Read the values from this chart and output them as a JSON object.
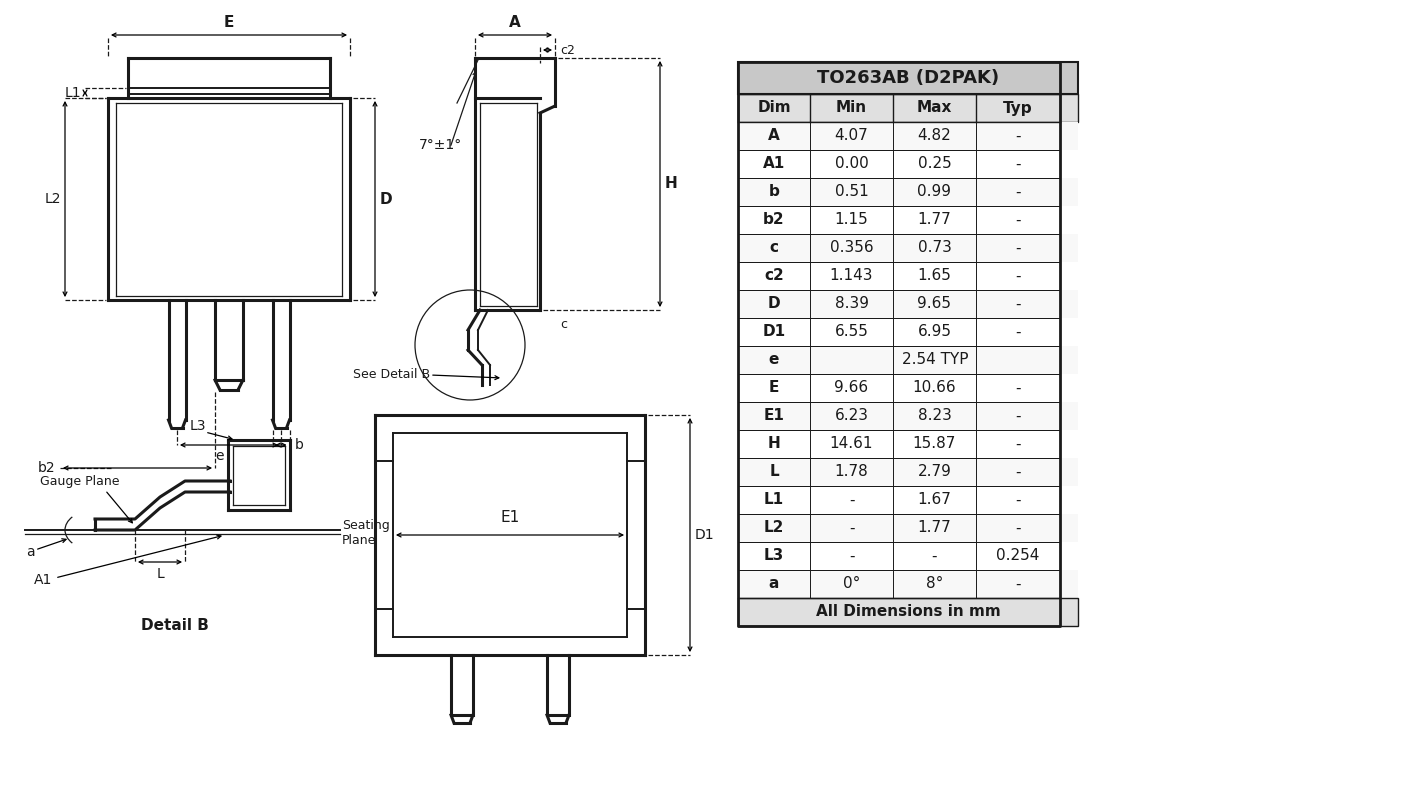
{
  "title": "TO263AB (D2PAK)",
  "table_header": [
    "Dim",
    "Min",
    "Max",
    "Typ"
  ],
  "table_rows": [
    [
      "A",
      "4.07",
      "4.82",
      "-"
    ],
    [
      "A1",
      "0.00",
      "0.25",
      "-"
    ],
    [
      "b",
      "0.51",
      "0.99",
      "-"
    ],
    [
      "b2",
      "1.15",
      "1.77",
      "-"
    ],
    [
      "c",
      "0.356",
      "0.73",
      "-"
    ],
    [
      "c2",
      "1.143",
      "1.65",
      "-"
    ],
    [
      "D",
      "8.39",
      "9.65",
      "-"
    ],
    [
      "D1",
      "6.55",
      "6.95",
      "-"
    ],
    [
      "e",
      "2.54 TYP",
      "",
      ""
    ],
    [
      "E",
      "9.66",
      "10.66",
      "-"
    ],
    [
      "E1",
      "6.23",
      "8.23",
      "-"
    ],
    [
      "H",
      "14.61",
      "15.87",
      "-"
    ],
    [
      "L",
      "1.78",
      "2.79",
      "-"
    ],
    [
      "L1",
      "-",
      "1.67",
      "-"
    ],
    [
      "L2",
      "-",
      "1.77",
      "-"
    ],
    [
      "L3",
      "-",
      "-",
      "0.254"
    ],
    [
      "a",
      "0°",
      "8°",
      "-"
    ]
  ],
  "footer": "All Dimensions in mm",
  "bg_color": "#ffffff",
  "line_color": "#1a1a1a"
}
